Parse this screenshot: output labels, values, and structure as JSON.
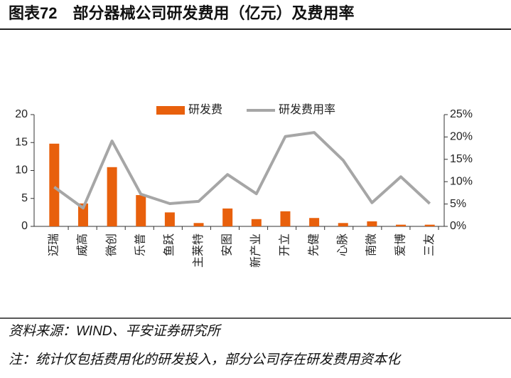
{
  "header": {
    "title": "图表72　部分器械公司研发费用（亿元）及费用率"
  },
  "chart_data": {
    "type": "bar_line",
    "categories": [
      "迈瑞",
      "威高",
      "微创",
      "乐普",
      "鱼跃",
      "主莱特",
      "安图",
      "新产业",
      "开立",
      "先健",
      "心脉",
      "南微",
      "爱博",
      "三友"
    ],
    "series": [
      {
        "name": "研发费",
        "type": "bar",
        "color": "#e8600c",
        "values": [
          14.8,
          4.1,
          10.6,
          5.6,
          2.5,
          0.6,
          3.2,
          1.3,
          2.7,
          1.5,
          0.6,
          0.9,
          0.3,
          0.3
        ]
      },
      {
        "name": "研发费用率",
        "type": "line",
        "axis": "y2",
        "color": "#a6a6a6",
        "values": [
          8.8,
          4.1,
          19.1,
          7.2,
          5.1,
          5.6,
          11.6,
          7.3,
          20.1,
          21.0,
          14.8,
          5.3,
          11.1,
          5.1
        ]
      }
    ],
    "ylim": [
      0,
      20
    ],
    "yticks": [
      0,
      5,
      10,
      15,
      20
    ],
    "y2lim": [
      0,
      25
    ],
    "y2ticks": [
      {
        "value": 0,
        "label": "0%"
      },
      {
        "value": 5,
        "label": "5%"
      },
      {
        "value": 10,
        "label": "10%"
      },
      {
        "value": 15,
        "label": "15%"
      },
      {
        "value": 20,
        "label": "20%"
      },
      {
        "value": 25,
        "label": "25%"
      }
    ],
    "legend": "top"
  },
  "footer": {
    "source": "资料来源：WIND、平安证券研究所",
    "note": "注：统计仅包括费用化的研发投入，部分公司存在研发费用资本化"
  }
}
